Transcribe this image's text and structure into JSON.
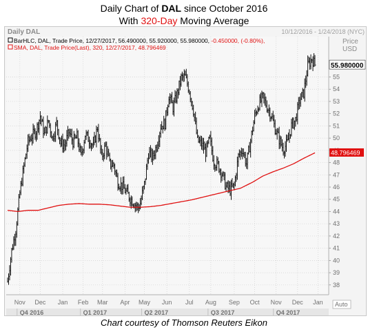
{
  "title": {
    "line1_pre": "Daily Chart of ",
    "line1_ticker": "DAL",
    "line1_post": " since October 2016",
    "line2_pre": "With ",
    "line2_highlight": "320-Day",
    "line2_post": " Moving Average"
  },
  "footer": "Chart courtesy of Thomson Reuters Eikon",
  "chart_data": {
    "type": "line",
    "panel_name": "Daily DAL",
    "date_range": "10/12/2016 - 1/24/2018 (NYC)",
    "legend": [
      {
        "text": "BarHLC, DAL, Trade Price, 12/27/2017, 56.490000, 55.920000, 55.980000, ",
        "change": "-0.450000, (-0.80%),",
        "color": "#000000"
      },
      {
        "text": "SMA, DAL, Trade Price(Last),  320,  12/27/2017,  48.796469",
        "change": "",
        "color": "#e01010"
      }
    ],
    "y_axis": {
      "label_line1": "Price",
      "label_line2": "USD",
      "ylim": [
        37.2,
        58.3
      ],
      "ticks": [
        38,
        39,
        40,
        41,
        42,
        43,
        44,
        45,
        46,
        47,
        48,
        49,
        50,
        51,
        52,
        53,
        54,
        55
      ]
    },
    "last_price_label": "55.980000",
    "last_price": 55.98,
    "sma_label": "48.796469",
    "sma_last": 48.796469,
    "x_months": [
      {
        "label": "Nov",
        "i": 12
      },
      {
        "label": "Dec",
        "i": 32
      },
      {
        "label": "Jan",
        "i": 54
      },
      {
        "label": "Feb",
        "i": 74
      },
      {
        "label": "Mar",
        "i": 93
      },
      {
        "label": "Apr",
        "i": 115
      },
      {
        "label": "May",
        "i": 134
      },
      {
        "label": "Jun",
        "i": 156
      },
      {
        "label": "Jul",
        "i": 178
      },
      {
        "label": "Aug",
        "i": 199
      },
      {
        "label": "Sep",
        "i": 222
      },
      {
        "label": "Oct",
        "i": 242
      },
      {
        "label": "Nov",
        "i": 263
      },
      {
        "label": "Dec",
        "i": 284
      },
      {
        "label": "Jan",
        "i": 304
      }
    ],
    "x_quarters": [
      {
        "label": "Q4 2016",
        "i": 12
      },
      {
        "label": "Q1 2017",
        "i": 74
      },
      {
        "label": "Q2 2017",
        "i": 134
      },
      {
        "label": "Q3 2017",
        "i": 199
      },
      {
        "label": "Q4 2017",
        "i": 263
      }
    ],
    "auto_label": "Auto",
    "price_anchors": [
      [
        0,
        38.3
      ],
      [
        4,
        40.8
      ],
      [
        8,
        42.5
      ],
      [
        12,
        45.5
      ],
      [
        16,
        47.7
      ],
      [
        20,
        49.7
      ],
      [
        24,
        50.2
      ],
      [
        28,
        50.6
      ],
      [
        32,
        51.8
      ],
      [
        36,
        50.3
      ],
      [
        40,
        51.4
      ],
      [
        44,
        50.0
      ],
      [
        48,
        51.2
      ],
      [
        52,
        49.6
      ],
      [
        56,
        49.4
      ],
      [
        60,
        50.5
      ],
      [
        64,
        49.7
      ],
      [
        68,
        50.1
      ],
      [
        72,
        48.5
      ],
      [
        76,
        50.3
      ],
      [
        80,
        49.9
      ],
      [
        84,
        49.3
      ],
      [
        88,
        50.9
      ],
      [
        92,
        48.4
      ],
      [
        96,
        49.4
      ],
      [
        100,
        47.9
      ],
      [
        104,
        47.8
      ],
      [
        108,
        46.4
      ],
      [
        112,
        46.1
      ],
      [
        116,
        45.6
      ],
      [
        120,
        45.1
      ],
      [
        124,
        44.7
      ],
      [
        128,
        44.3
      ],
      [
        130,
        44.7
      ],
      [
        134,
        46.2
      ],
      [
        138,
        48.8
      ],
      [
        142,
        48.4
      ],
      [
        146,
        49.4
      ],
      [
        150,
        51.0
      ],
      [
        154,
        51.2
      ],
      [
        158,
        53.5
      ],
      [
        162,
        52.5
      ],
      [
        166,
        53.6
      ],
      [
        170,
        54.9
      ],
      [
        174,
        55.0
      ],
      [
        178,
        53.9
      ],
      [
        182,
        52.3
      ],
      [
        186,
        49.8
      ],
      [
        190,
        49.5
      ],
      [
        194,
        48.9
      ],
      [
        198,
        49.9
      ],
      [
        202,
        48.1
      ],
      [
        206,
        47.8
      ],
      [
        210,
        47.1
      ],
      [
        214,
        46.0
      ],
      [
        218,
        45.8
      ],
      [
        222,
        46.1
      ],
      [
        226,
        48.5
      ],
      [
        230,
        49.1
      ],
      [
        234,
        47.9
      ],
      [
        238,
        49.8
      ],
      [
        242,
        51.8
      ],
      [
        246,
        52.8
      ],
      [
        250,
        53.3
      ],
      [
        254,
        52.6
      ],
      [
        258,
        51.9
      ],
      [
        262,
        50.8
      ],
      [
        266,
        49.9
      ],
      [
        270,
        49.1
      ],
      [
        274,
        49.6
      ],
      [
        278,
        51.0
      ],
      [
        282,
        51.5
      ],
      [
        286,
        53.1
      ],
      [
        290,
        53.7
      ],
      [
        294,
        55.9
      ],
      [
        298,
        56.5
      ],
      [
        301,
        56.0
      ]
    ],
    "sma_anchors": [
      [
        0,
        44.1
      ],
      [
        10,
        44.0
      ],
      [
        20,
        44.1
      ],
      [
        30,
        44.1
      ],
      [
        40,
        44.3
      ],
      [
        50,
        44.5
      ],
      [
        60,
        44.6
      ],
      [
        70,
        44.65
      ],
      [
        80,
        44.6
      ],
      [
        90,
        44.6
      ],
      [
        100,
        44.55
      ],
      [
        110,
        44.45
      ],
      [
        120,
        44.35
      ],
      [
        130,
        44.35
      ],
      [
        140,
        44.4
      ],
      [
        150,
        44.5
      ],
      [
        160,
        44.65
      ],
      [
        170,
        44.8
      ],
      [
        180,
        44.95
      ],
      [
        190,
        45.15
      ],
      [
        200,
        45.35
      ],
      [
        210,
        45.55
      ],
      [
        220,
        45.75
      ],
      [
        228,
        45.9
      ],
      [
        240,
        46.4
      ],
      [
        250,
        46.9
      ],
      [
        260,
        47.25
      ],
      [
        270,
        47.55
      ],
      [
        280,
        47.9
      ],
      [
        290,
        48.35
      ],
      [
        301,
        48.8
      ]
    ],
    "n_bars": 302
  }
}
